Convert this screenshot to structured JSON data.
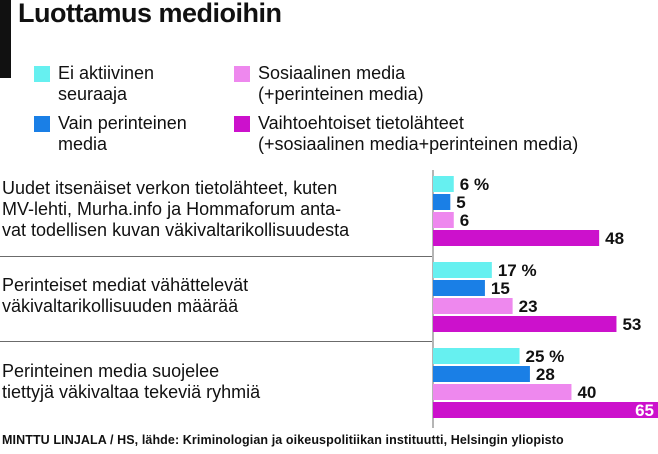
{
  "title": "Luottamus medioihin",
  "legend": [
    {
      "label": "Ei aktiivinen\nseuraaja",
      "color": "#66f0f0"
    },
    {
      "label": "Vain perinteinen\nmedia",
      "color": "#1a7fe6"
    },
    {
      "label": "Sosiaalinen media\n(+perinteinen media)",
      "color": "#ee88ee"
    },
    {
      "label": "Vaihtoehtoiset tietolähteet\n(+sosiaalinen media+perinteinen media)",
      "color": "#cc11cc"
    }
  ],
  "chart_data": {
    "type": "bar",
    "orientation": "horizontal",
    "title": "Luottamus medioihin",
    "categories": [
      "Uudet itsenäiset verkon tietolähteet, kuten\nMV-lehti, Murha.info ja Hommaforum anta-\nvat todellisen kuvan väkivaltarikollisuudesta",
      "Perinteiset mediat vähättelevät\nväkivaltarikollisuuden määrää",
      "Perinteinen media suojelee\ntiettyjä väkivaltaa tekeviä ryhmiä"
    ],
    "series": [
      {
        "name": "Ei aktiivinen seuraaja",
        "values": [
          6,
          17,
          25
        ],
        "color": "#66f0f0"
      },
      {
        "name": "Vain perinteinen media",
        "values": [
          5,
          15,
          28
        ],
        "color": "#1a7fe6"
      },
      {
        "name": "Sosiaalinen media (+perinteinen media)",
        "values": [
          6,
          23,
          40
        ],
        "color": "#ee88ee"
      },
      {
        "name": "Vaihtoehtoiset tietolähteet (+sosiaalinen media+perinteinen media)",
        "values": [
          48,
          53,
          65
        ],
        "color": "#cc11cc"
      }
    ],
    "value_labels": [
      [
        "6 %",
        "5",
        "6",
        "48"
      ],
      [
        "17 %",
        "15",
        "23",
        "53"
      ],
      [
        "25 %",
        "28",
        "40",
        "65"
      ]
    ],
    "xlim": [
      0,
      65
    ],
    "grid": false,
    "legend_position": "top"
  },
  "source": "MINTTU LINJALA / HS, lähde: Kriminologian ja oikeuspolitiikan instituutti, Helsingin yliopisto"
}
